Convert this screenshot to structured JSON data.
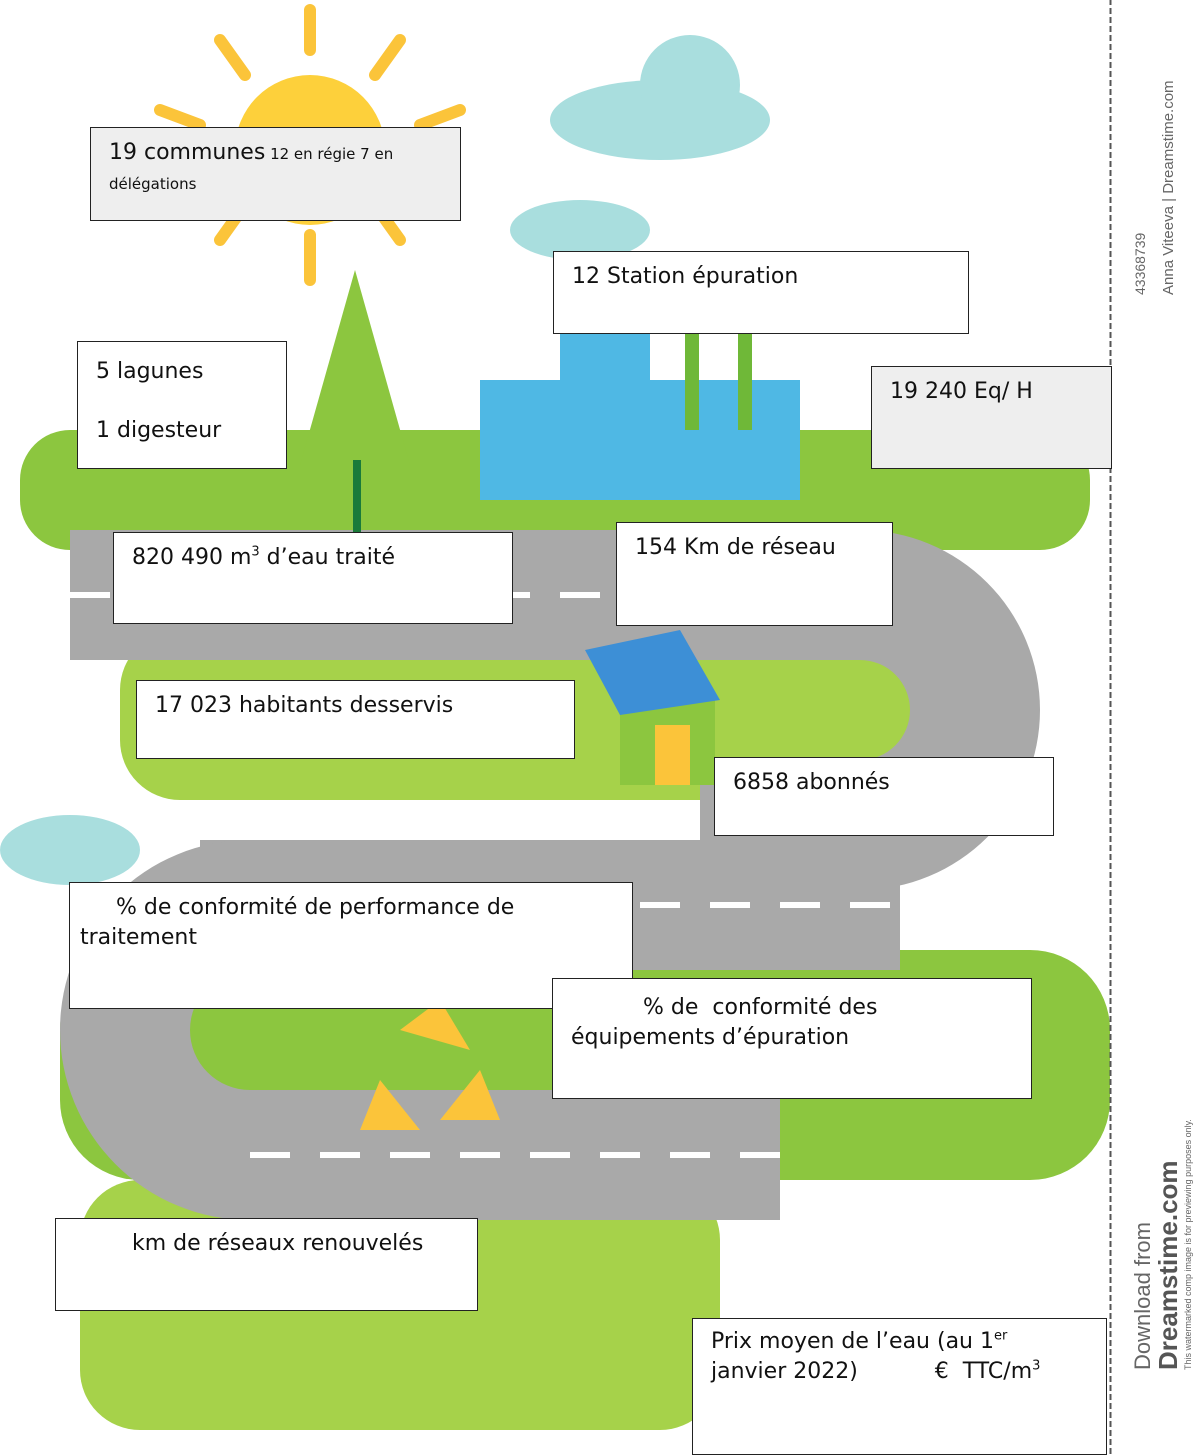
{
  "boxes": {
    "communes": {
      "title": "19 communes",
      "detail": " 12 en régie 7 en délégations"
    },
    "stations": {
      "text": "12 Station épuration"
    },
    "lagunes": {
      "line1": "5 lagunes",
      "line2": "1 digesteur"
    },
    "equivalent": {
      "text": "19 240 Eq/ H"
    },
    "eau_traitee": {
      "text": "820 490 m",
      "sup": "3",
      "after": " d’eau traité"
    },
    "reseau": {
      "text": "154 Km de réseau"
    },
    "habitants": {
      "text": "17 023 habitants desservis"
    },
    "abonnes": {
      "text": "6858 abonnés"
    },
    "conformite_traitement": {
      "text": "% de conformité de performance de traitement"
    },
    "conformite_equipements": {
      "text": "% de  conformité des équipements d’épuration"
    },
    "renouveles": {
      "text": "km de réseaux renouvelés"
    },
    "prix": {
      "text": "Prix moyen de l’eau (au 1",
      "sup": "er",
      "after": " janvier 2022)           €  TTC/m",
      "sup2": "3"
    }
  },
  "watermark": {
    "id": "43368739",
    "author": "Anna Viteeva | Dreamstime.com",
    "download": "Download from",
    "brand": "Dreamstime.com",
    "notice": "This watermarked comp image is for previewing purposes only."
  }
}
